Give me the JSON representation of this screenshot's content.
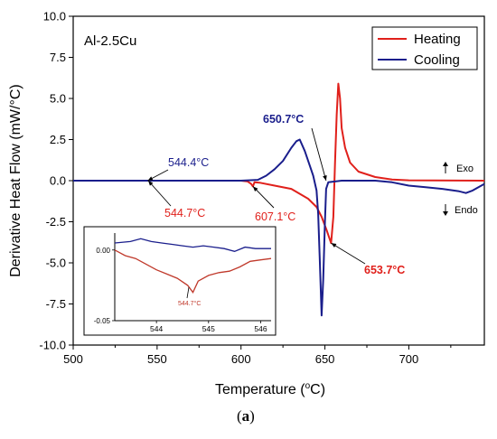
{
  "chart_data": {
    "type": "line",
    "ylabel": "Derivative Heat Flow (mW/°C)",
    "xlabel_main": "Temperature (",
    "xlabel_sup": "o",
    "xlabel_end": "C)",
    "sample_label": "Al-2.5Cu",
    "caption_open": "(",
    "caption_letter": "a",
    "caption_close": ")",
    "xlim": [
      500,
      745
    ],
    "ylim": [
      -10.0,
      10.0
    ],
    "x_ticks": [
      500,
      550,
      600,
      650,
      700
    ],
    "y_ticks": [
      10.0,
      7.5,
      5.0,
      2.5,
      0.0,
      -2.5,
      -5.0,
      -7.5,
      -10.0
    ],
    "x_tick_labels": [
      "500",
      "550",
      "600",
      "650",
      "700"
    ],
    "y_tick_labels": [
      "10.0",
      "7.5",
      "5.0",
      "2.5",
      "0.0",
      "-2.5",
      "-5.0",
      "-7.5",
      "-10.0"
    ],
    "series": [
      {
        "name": "Heating",
        "color": "#e0201b",
        "points": [
          [
            500,
            0
          ],
          [
            540,
            0
          ],
          [
            560,
            0
          ],
          [
            580,
            0
          ],
          [
            600,
            0
          ],
          [
            604,
            -0.05
          ],
          [
            606,
            -0.2
          ],
          [
            607.1,
            -0.35
          ],
          [
            608,
            -0.1
          ],
          [
            611,
            -0.12
          ],
          [
            620,
            -0.3
          ],
          [
            630,
            -0.5
          ],
          [
            640,
            -1.1
          ],
          [
            645,
            -1.6
          ],
          [
            648,
            -2.2
          ],
          [
            651,
            -3.0
          ],
          [
            653.7,
            -3.8
          ],
          [
            655,
            -2.2
          ],
          [
            656,
            1.0
          ],
          [
            657,
            4.0
          ],
          [
            658,
            5.9
          ],
          [
            659,
            5.0
          ],
          [
            660,
            3.2
          ],
          [
            662,
            2.0
          ],
          [
            665,
            1.1
          ],
          [
            670,
            0.55
          ],
          [
            680,
            0.22
          ],
          [
            690,
            0.07
          ],
          [
            700,
            0.02
          ],
          [
            745,
            0
          ]
        ]
      },
      {
        "name": "Cooling",
        "color": "#1a1e8c",
        "points": [
          [
            500,
            0
          ],
          [
            560,
            0
          ],
          [
            600,
            0
          ],
          [
            610,
            0.05
          ],
          [
            615,
            0.3
          ],
          [
            620,
            0.7
          ],
          [
            625,
            1.2
          ],
          [
            630,
            2.0
          ],
          [
            633,
            2.4
          ],
          [
            635,
            2.5
          ],
          [
            638,
            1.8
          ],
          [
            641,
            0.9
          ],
          [
            643,
            0.3
          ],
          [
            645,
            -0.6
          ],
          [
            646,
            -2.0
          ],
          [
            647,
            -5.0
          ],
          [
            648,
            -8.2
          ],
          [
            649,
            -6.0
          ],
          [
            650,
            -2.5
          ],
          [
            650.7,
            -0.5
          ],
          [
            652,
            -0.1
          ],
          [
            660,
            0
          ],
          [
            680,
            0
          ],
          [
            690,
            -0.1
          ],
          [
            700,
            -0.3
          ],
          [
            710,
            -0.4
          ],
          [
            720,
            -0.5
          ],
          [
            730,
            -0.65
          ],
          [
            734,
            -0.75
          ],
          [
            738,
            -0.6
          ],
          [
            745,
            -0.2
          ]
        ]
      }
    ],
    "annotations": [
      {
        "text": "544.4°C",
        "color": "#1a1e8c",
        "bold": false,
        "x": 544.4,
        "y": 0
      },
      {
        "text": "544.7°C",
        "color": "#e0201b",
        "bold": false,
        "x": 544.7,
        "y": 0
      },
      {
        "text": "607.1°C",
        "color": "#e0201b",
        "bold": false,
        "x": 607.1,
        "y": -0.35
      },
      {
        "text": "650.7°C",
        "color": "#1a1e8c",
        "bold": true,
        "x": 650.7,
        "y": 0
      },
      {
        "text": "653.7°C",
        "color": "#e0201b",
        "bold": true,
        "x": 653.7,
        "y": -3.8
      }
    ],
    "direction_labels": {
      "exo": "Exo",
      "endo": "Endo"
    },
    "legend_position": "top-right",
    "inset": {
      "xlim": [
        543.2,
        546.2
      ],
      "ylim": [
        -0.05,
        0.012
      ],
      "x_ticks": [
        544,
        545,
        546
      ],
      "x_tick_labels": [
        "544",
        "545",
        "546"
      ],
      "y_ticks": [
        0.0,
        -0.05
      ],
      "y_tick_labels": [
        "0.00",
        "-0.05"
      ],
      "annotation": "544.7°C",
      "series": [
        {
          "name": "Cooling",
          "color": "#1a1e8c",
          "points": [
            [
              543.2,
              0.005
            ],
            [
              543.5,
              0.006
            ],
            [
              543.7,
              0.008
            ],
            [
              543.9,
              0.006
            ],
            [
              544.1,
              0.005
            ],
            [
              544.3,
              0.004
            ],
            [
              544.5,
              0.003
            ],
            [
              544.7,
              0.002
            ],
            [
              544.9,
              0.003
            ],
            [
              545.1,
              0.002
            ],
            [
              545.3,
              0.001
            ],
            [
              545.5,
              -0.001
            ],
            [
              545.7,
              0.002
            ],
            [
              545.9,
              0.001
            ],
            [
              546.2,
              0.001
            ]
          ]
        },
        {
          "name": "Heating",
          "color": "#c0392b",
          "points": [
            [
              543.2,
              0.0
            ],
            [
              543.4,
              -0.004
            ],
            [
              543.6,
              -0.006
            ],
            [
              543.8,
              -0.01
            ],
            [
              544.0,
              -0.014
            ],
            [
              544.2,
              -0.017
            ],
            [
              544.4,
              -0.02
            ],
            [
              544.6,
              -0.025
            ],
            [
              544.7,
              -0.03
            ],
            [
              544.8,
              -0.022
            ],
            [
              545.0,
              -0.018
            ],
            [
              545.2,
              -0.016
            ],
            [
              545.4,
              -0.015
            ],
            [
              545.6,
              -0.012
            ],
            [
              545.8,
              -0.008
            ],
            [
              546.0,
              -0.007
            ],
            [
              546.2,
              -0.006
            ]
          ]
        }
      ]
    }
  }
}
